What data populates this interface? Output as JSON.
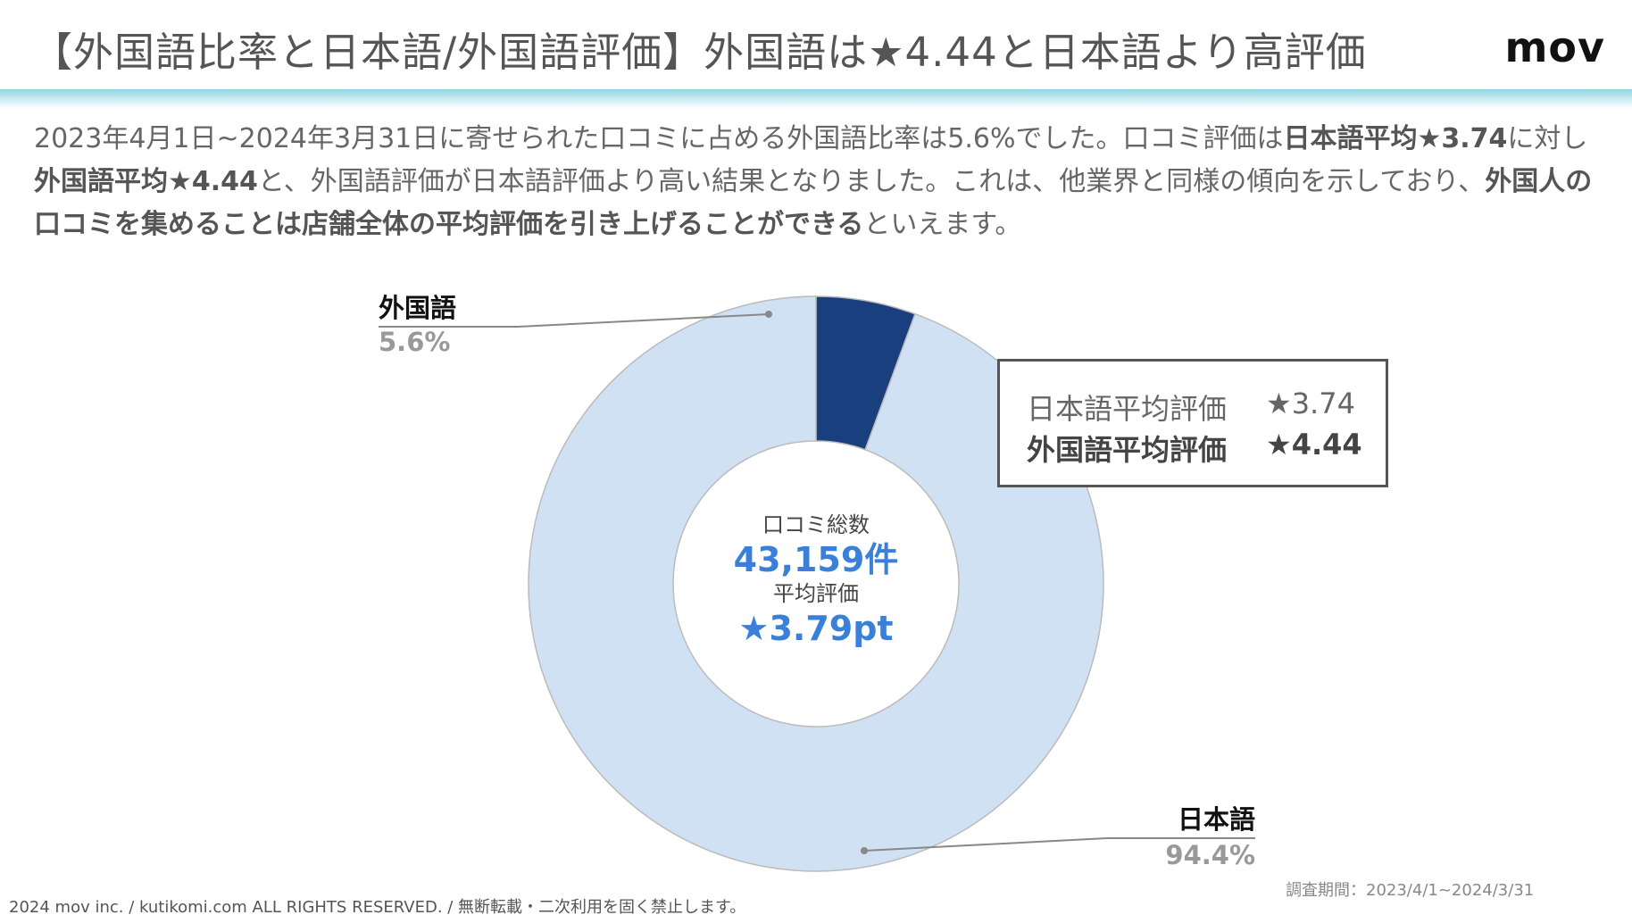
{
  "header": {
    "title": "【外国語比率と日本語/外国語評価】外国語は★4.44と日本語より高評価",
    "logo": "mov"
  },
  "description": {
    "s1": "2023年4月1日~2024年3月31日に寄せられた口コミに占める外国語比率は5.6%でした。口コミ評価は",
    "b1": "日本語平均★3.74",
    "s2": "に対し",
    "b2": "外国語平均★4.44",
    "s3": "と、外国語評価が日本語評価より高い結果となりました。これは、他業界と同様の傾向を示しており、",
    "b3": "外国人の口コミを集めることは店舗全体の平均評価を引き上げることができる",
    "s4": "といえます。"
  },
  "chart_data": {
    "type": "pie",
    "variant": "donut",
    "categories": [
      "外国語",
      "日本語"
    ],
    "values": [
      5.6,
      94.4
    ],
    "labels": [
      "5.6%",
      "94.4%"
    ],
    "colors": [
      "#1a3f7f",
      "#d0e1f3"
    ],
    "center": {
      "line1": "口コミ総数",
      "line2": "43,159件",
      "line3": "平均評価",
      "line4": "★3.79pt",
      "accent": "#3a7fd8"
    }
  },
  "legend": {
    "row1_label": "日本語平均評価",
    "row1_value": "★3.74",
    "row2_label": "外国語平均評価",
    "row2_value": "★4.44"
  },
  "footer": {
    "copyright": "2024 mov inc. / kutikomi.com ALL RIGHTS RESERVED. / 無断転載・二次利用を固く禁止します。",
    "period": "調査期間：2023/4/1~2024/3/31"
  }
}
